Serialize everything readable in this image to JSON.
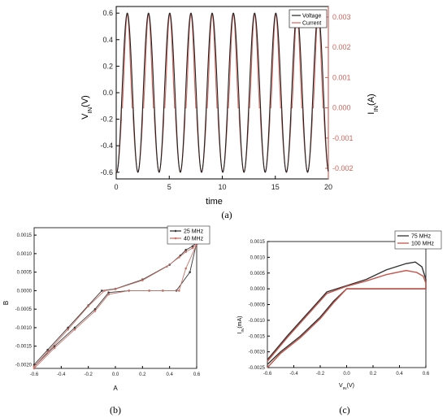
{
  "captions": {
    "a": "(a)",
    "b": "(b)",
    "c": "(c)"
  },
  "chart_data": [
    {
      "id": "a",
      "type": "line",
      "xlabel": "time",
      "ylabel_left": "V_IN(V)",
      "ylabel_right": "I_IN(A)",
      "xlim": [
        0,
        20
      ],
      "ylim_left": [
        -0.65,
        0.65
      ],
      "ylim_right": [
        -0.00235,
        0.00335
      ],
      "x_ticks": [
        0,
        5,
        10,
        15,
        20
      ],
      "y_ticks_left": [
        -0.6,
        -0.4,
        -0.2,
        0.0,
        0.2,
        0.4,
        0.6
      ],
      "y_ticks_left_labels": [
        "-0.6",
        "-0.4",
        "-0.2",
        "0.0",
        "0.2",
        "0.4",
        "0.6"
      ],
      "y_ticks_right": [
        -0.002,
        -0.001,
        0.0,
        0.001,
        0.002,
        0.003
      ],
      "y_ticks_right_labels": [
        "-0.002",
        "-0.001",
        "0.000",
        "0.001",
        "0.002",
        "0.003"
      ],
      "legend_position": "top-right",
      "series": [
        {
          "name": "Voltage",
          "color": "#222222",
          "axis": "left",
          "amplitude": 0.6,
          "period": 2.0
        },
        {
          "name": "Current",
          "color": "#d0645a",
          "axis": "right",
          "amplitude_pos": 0.0031,
          "amplitude_neg": 0.0021,
          "period": 2.0
        }
      ]
    },
    {
      "id": "b",
      "type": "line",
      "xlabel": "A",
      "ylabel": "B",
      "xlim": [
        -0.6,
        0.6
      ],
      "ylim": [
        -0.0021,
        0.0017
      ],
      "x_ticks": [
        -0.6,
        -0.4,
        -0.2,
        0.0,
        0.2,
        0.4,
        0.6
      ],
      "x_tick_labels": [
        "-0.6",
        "-0.4",
        "-0.2",
        "0.0",
        "0.2",
        "0.4",
        "0.6"
      ],
      "y_ticks": [
        -0.002,
        -0.0015,
        -0.001,
        -0.0005,
        0.0,
        0.0005,
        0.001,
        0.0015
      ],
      "y_tick_labels": [
        "-0.0020",
        "-0.0015",
        "-0.0010",
        "-0.0005",
        "0.0000",
        "0.0005",
        "0.0010",
        "0.0015"
      ],
      "legend_position": "top-right",
      "series": [
        {
          "name": "25 MHz",
          "color": "#3a3a3a",
          "x": [
            -0.6,
            -0.45,
            -0.3,
            -0.15,
            -0.05,
            0.1,
            0.25,
            0.35,
            0.45,
            0.55,
            0.6,
            0.57,
            0.52,
            0.48,
            0.4,
            0.2,
            0.0,
            -0.1,
            -0.2,
            -0.35,
            -0.5,
            -0.6
          ],
          "y": [
            -0.00205,
            -0.0015,
            -0.001,
            -0.0005,
            -5e-05,
            0.0,
            0.0,
            0.0,
            0.0,
            0.0005,
            0.0013,
            0.0012,
            0.0011,
            0.00095,
            0.0007,
            0.0003,
            5e-05,
            0.0,
            -0.0004,
            -0.001,
            -0.0016,
            -0.002
          ]
        },
        {
          "name": "40 MHz",
          "color": "#c8756c",
          "x": [
            -0.6,
            -0.45,
            -0.3,
            -0.15,
            -0.05,
            0.1,
            0.25,
            0.35,
            0.47,
            0.52,
            0.6,
            0.57,
            0.52,
            0.47,
            0.38,
            0.2,
            0.0,
            -0.08,
            -0.2,
            -0.35,
            -0.5,
            -0.6
          ],
          "y": [
            -0.0021,
            -0.00155,
            -0.00105,
            -0.00055,
            -0.0001,
            0.0,
            0.0,
            0.0,
            0.0,
            0.0006,
            0.00125,
            0.00115,
            0.00105,
            0.0009,
            0.00065,
            0.00028,
            4e-05,
            0.0,
            -0.00042,
            -0.00105,
            -0.00165,
            -0.00205
          ]
        }
      ]
    },
    {
      "id": "c",
      "type": "line",
      "xlabel": "V_IN(V)",
      "ylabel": "I_IN(mA)",
      "xlim": [
        -0.6,
        0.6
      ],
      "ylim": [
        -0.0025,
        0.0015
      ],
      "x_ticks": [
        -0.6,
        -0.4,
        -0.2,
        0.0,
        0.2,
        0.4,
        0.6
      ],
      "x_tick_labels": [
        "-0.6",
        "-0.4",
        "-0.2",
        "0.0",
        "0.2",
        "0.4",
        "0.6"
      ],
      "y_ticks": [
        -0.0025,
        -0.002,
        -0.0015,
        -0.001,
        -0.0005,
        0.0,
        0.0005,
        0.001,
        0.0015
      ],
      "y_tick_labels": [
        "-0.0025",
        "-0.0020",
        "-0.0015",
        "-0.0010",
        "-0.0005",
        "0.0000",
        "0.0005",
        "0.0010",
        "0.0015"
      ],
      "legend_position": "top-right",
      "series": [
        {
          "name": "75 MHz",
          "color": "#333333",
          "x": [
            -0.6,
            -0.45,
            -0.3,
            -0.15,
            0.0,
            0.15,
            0.3,
            0.45,
            0.52,
            0.57,
            0.6,
            0.6,
            0.5,
            0.3,
            0.1,
            0.0,
            -0.1,
            -0.2,
            -0.35,
            -0.5,
            -0.6
          ],
          "y": [
            -0.00225,
            -0.0015,
            -0.0008,
            -0.0001,
            0.0001,
            0.0003,
            0.0006,
            0.0008,
            0.00085,
            0.0007,
            0.0003,
            0.0,
            0.0,
            0.0,
            0.0,
            0.0,
            -0.0004,
            -0.0009,
            -0.0015,
            -0.002,
            -0.0024
          ]
        },
        {
          "name": "100 MHz",
          "color": "#c4564c",
          "x": [
            -0.6,
            -0.45,
            -0.3,
            -0.15,
            0.0,
            0.15,
            0.3,
            0.45,
            0.53,
            0.58,
            0.6,
            0.6,
            0.5,
            0.3,
            0.1,
            0.0,
            -0.1,
            -0.2,
            -0.35,
            -0.5,
            -0.6
          ],
          "y": [
            -0.0023,
            -0.00155,
            -0.00085,
            -0.00015,
            8e-05,
            0.00025,
            0.00045,
            0.00058,
            0.00052,
            0.0004,
            0.00018,
            0.0,
            0.0,
            0.0,
            0.0,
            0.0,
            -0.00045,
            -0.00095,
            -0.00155,
            -0.00205,
            -0.0025
          ]
        }
      ]
    }
  ]
}
